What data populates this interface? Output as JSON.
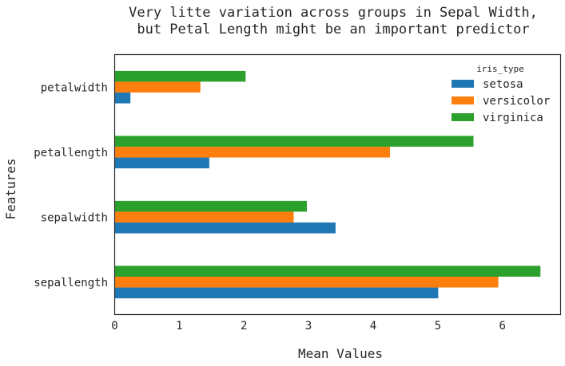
{
  "chart_data": {
    "type": "bar",
    "orientation": "horizontal",
    "title_lines": [
      "Very litte variation across groups in Sepal Width,",
      "but Petal Length might be an important predictor"
    ],
    "xlabel": "Mean Values",
    "ylabel": "Features",
    "xlim": [
      0,
      6.9
    ],
    "xticks": [
      "0",
      "1",
      "2",
      "3",
      "4",
      "5",
      "6"
    ],
    "categories": [
      "sepallength",
      "sepalwidth",
      "petallength",
      "petalwidth"
    ],
    "legend_title": "iris_type",
    "legend_position": "top-right",
    "grid": false,
    "series": [
      {
        "name": "setosa",
        "color": "#1f77b4",
        "values": [
          5.006,
          3.418,
          1.464,
          0.244
        ]
      },
      {
        "name": "versicolor",
        "color": "#ff7f0e",
        "values": [
          5.936,
          2.77,
          4.26,
          1.326
        ]
      },
      {
        "name": "virginica",
        "color": "#2ca02c",
        "values": [
          6.588,
          2.974,
          5.552,
          2.026
        ]
      }
    ]
  }
}
